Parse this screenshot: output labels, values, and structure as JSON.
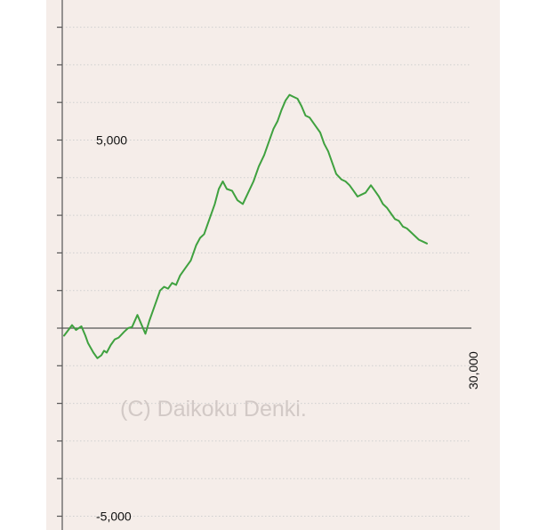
{
  "chart_data": {
    "type": "line",
    "y_axis": {
      "range": [
        -5000,
        8500
      ],
      "major_step": 1000,
      "tick_labels": [
        {
          "value": 5000,
          "text": "5,000"
        },
        {
          "value": -5000,
          "text": "-5,000"
        }
      ]
    },
    "x_axis": {
      "range": [
        0,
        30000
      ],
      "tick_labels": [
        {
          "value": 30000,
          "text": "30,000"
        }
      ]
    },
    "grid": true,
    "watermark": "(C) Daikoku Denki.",
    "colors": {
      "line": "#3fa13f",
      "background": "#f5ede9",
      "axis": "#555555",
      "grid": "#cfcfcf"
    },
    "series": [
      {
        "x": [
          0,
          600,
          900,
          1300,
          1600,
          1800,
          2200,
          2500,
          2800,
          3000,
          3200,
          3500,
          3800,
          4100,
          4500,
          4800,
          5100,
          5500,
          5800,
          6100,
          6400,
          6600,
          6900,
          7200,
          7500,
          7800,
          8100,
          8400,
          8700,
          9100,
          9500,
          9900,
          10200,
          10500,
          10900,
          11300,
          11600,
          11900,
          12200,
          12600,
          13000,
          13400,
          13800,
          14200,
          14600,
          15000,
          15300,
          15700,
          16000,
          16300,
          16600,
          16900,
          17200,
          17500,
          17800,
          18100,
          18400,
          18800,
          19200,
          19500,
          19800,
          20100,
          20400,
          20800,
          21100,
          21400,
          21700,
          22000,
          22300,
          22600,
          22800,
          23000,
          23300,
          23600,
          23900,
          24200,
          24500,
          24800,
          25100,
          25400,
          25700,
          26000,
          26300,
          26600,
          26900,
          27200
        ],
        "y": [
          -200,
          80,
          -50,
          50,
          -200,
          -400,
          -650,
          -800,
          -720,
          -600,
          -650,
          -450,
          -300,
          -250,
          -100,
          0,
          30,
          350,
          100,
          -150,
          200,
          400,
          700,
          1000,
          1100,
          1050,
          1200,
          1150,
          1400,
          1600,
          1800,
          2200,
          2400,
          2500,
          2900,
          3300,
          3700,
          3900,
          3700,
          3650,
          3400,
          3300,
          3600,
          3900,
          4300,
          4600,
          4900,
          5300,
          5500,
          5800,
          6050,
          6200,
          6150,
          6100,
          5900,
          5650,
          5600,
          5400,
          5200,
          4900,
          4700,
          4400,
          4100,
          3950,
          3900,
          3800,
          3650,
          3500,
          3550,
          3600,
          3700,
          3800,
          3650,
          3500,
          3300,
          3200,
          3050,
          2900,
          2850,
          2700,
          2650,
          2550,
          2450,
          2350,
          2300,
          2250
        ]
      }
    ]
  }
}
